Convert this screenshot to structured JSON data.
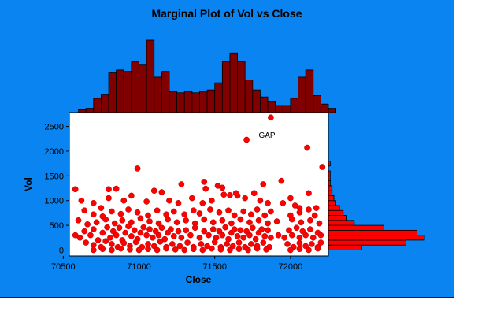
{
  "colors": {
    "background": "#0a84f0",
    "plot_area": "#ffffff",
    "histogram_top_fill": "#800000",
    "histogram_right_fill": "#ff0000",
    "points": "#ff0000",
    "text": "#000000"
  },
  "chart_data": {
    "type": "scatter",
    "title": "Marginal Plot of Vol vs Close",
    "xlabel": "Close",
    "ylabel": "Vol",
    "xlim": [
      70540,
      72250
    ],
    "ylim": [
      -120,
      2780
    ],
    "x_ticks": [
      70500,
      71000,
      71500,
      72000
    ],
    "y_ticks": [
      0,
      500,
      1000,
      1500,
      2000,
      2500
    ],
    "annotations": [
      {
        "text": "GAP",
        "x": 71855,
        "y": 2380
      }
    ],
    "series": [
      {
        "points": [
          [
            71870,
            2680
          ],
          [
            71710,
            2230
          ],
          [
            72110,
            2070
          ],
          [
            72210,
            1680
          ],
          [
            70990,
            1650
          ],
          [
            70580,
            1230
          ],
          [
            70800,
            1230
          ],
          [
            70850,
            1240
          ],
          [
            71100,
            1200
          ],
          [
            71150,
            1170
          ],
          [
            71280,
            1330
          ],
          [
            71430,
            1380
          ],
          [
            71440,
            1240
          ],
          [
            71520,
            1300
          ],
          [
            71550,
            1260
          ],
          [
            71600,
            1110
          ],
          [
            71650,
            1100
          ],
          [
            71700,
            1050
          ],
          [
            71760,
            1150
          ],
          [
            71820,
            1330
          ],
          [
            71940,
            1400
          ],
          [
            72000,
            1050
          ],
          [
            72030,
            900
          ],
          [
            72060,
            850
          ],
          [
            72120,
            1150
          ],
          [
            70620,
            1000
          ],
          [
            70700,
            950
          ],
          [
            70750,
            850
          ],
          [
            70800,
            1050
          ],
          [
            70900,
            1000
          ],
          [
            70950,
            1100
          ],
          [
            71050,
            980
          ],
          [
            71200,
            1000
          ],
          [
            71260,
            950
          ],
          [
            71350,
            1050
          ],
          [
            71420,
            950
          ],
          [
            71480,
            1000
          ],
          [
            71560,
            1120
          ],
          [
            71640,
            1150
          ],
          [
            71800,
            1000
          ],
          [
            71850,
            950
          ],
          [
            71950,
            950
          ],
          [
            72170,
            850
          ],
          [
            70640,
            800
          ],
          [
            70700,
            720
          ],
          [
            70760,
            680
          ],
          [
            70820,
            780
          ],
          [
            70880,
            730
          ],
          [
            70930,
            820
          ],
          [
            70990,
            760
          ],
          [
            71060,
            700
          ],
          [
            71120,
            800
          ],
          [
            71180,
            720
          ],
          [
            71230,
            780
          ],
          [
            71300,
            720
          ],
          [
            71360,
            800
          ],
          [
            71400,
            740
          ],
          [
            71470,
            820
          ],
          [
            71530,
            760
          ],
          [
            71590,
            800
          ],
          [
            71630,
            700
          ],
          [
            71690,
            780
          ],
          [
            71740,
            720
          ],
          [
            71780,
            820
          ],
          [
            71830,
            700
          ],
          [
            71870,
            780
          ],
          [
            72000,
            700
          ],
          [
            72060,
            760
          ],
          [
            72120,
            820
          ],
          [
            72160,
            700
          ],
          [
            70600,
            600
          ],
          [
            70660,
            520
          ],
          [
            70720,
            560
          ],
          [
            70780,
            620
          ],
          [
            70840,
            540
          ],
          [
            70890,
            600
          ],
          [
            70950,
            560
          ],
          [
            71010,
            640
          ],
          [
            71070,
            580
          ],
          [
            71130,
            540
          ],
          [
            71190,
            620
          ],
          [
            71250,
            560
          ],
          [
            71310,
            600
          ],
          [
            71370,
            540
          ],
          [
            71430,
            620
          ],
          [
            71490,
            560
          ],
          [
            71550,
            600
          ],
          [
            71610,
            540
          ],
          [
            71670,
            620
          ],
          [
            71730,
            560
          ],
          [
            71790,
            600
          ],
          [
            71850,
            540
          ],
          [
            71910,
            580
          ],
          [
            72010,
            620
          ],
          [
            72070,
            560
          ],
          [
            72130,
            600
          ],
          [
            72190,
            540
          ],
          [
            70580,
            300
          ],
          [
            70610,
            250
          ],
          [
            70640,
            380
          ],
          [
            70680,
            300
          ],
          [
            70700,
            420
          ],
          [
            70730,
            200
          ],
          [
            70760,
            350
          ],
          [
            70790,
            460
          ],
          [
            70810,
            250
          ],
          [
            70830,
            380
          ],
          [
            70850,
            300
          ],
          [
            70870,
            450
          ],
          [
            70890,
            200
          ],
          [
            70910,
            350
          ],
          [
            70930,
            480
          ],
          [
            70950,
            280
          ],
          [
            70970,
            400
          ],
          [
            70990,
            220
          ],
          [
            71010,
            350
          ],
          [
            71030,
            460
          ],
          [
            71050,
            300
          ],
          [
            71070,
            420
          ],
          [
            71090,
            250
          ],
          [
            71110,
            380
          ],
          [
            71130,
            300
          ],
          [
            71150,
            450
          ],
          [
            71170,
            220
          ],
          [
            71190,
            350
          ],
          [
            71210,
            420
          ],
          [
            71230,
            280
          ],
          [
            71260,
            380
          ],
          [
            71280,
            250
          ],
          [
            71310,
            400
          ],
          [
            71340,
            300
          ],
          [
            71370,
            450
          ],
          [
            71400,
            250
          ],
          [
            71430,
            380
          ],
          [
            71460,
            300
          ],
          [
            71490,
            420
          ],
          [
            71510,
            250
          ],
          [
            71530,
            380
          ],
          [
            71550,
            300
          ],
          [
            71570,
            460
          ],
          [
            71590,
            220
          ],
          [
            71610,
            350
          ],
          [
            71630,
            420
          ],
          [
            71650,
            280
          ],
          [
            71670,
            400
          ],
          [
            71690,
            250
          ],
          [
            71710,
            380
          ],
          [
            71730,
            300
          ],
          [
            71750,
            450
          ],
          [
            71770,
            220
          ],
          [
            71790,
            350
          ],
          [
            71810,
            420
          ],
          [
            71830,
            280
          ],
          [
            71850,
            400
          ],
          [
            71870,
            250
          ],
          [
            71920,
            300
          ],
          [
            71960,
            250
          ],
          [
            71990,
            400
          ],
          [
            72010,
            300
          ],
          [
            72040,
            450
          ],
          [
            72060,
            250
          ],
          [
            72080,
            380
          ],
          [
            72100,
            300
          ],
          [
            72130,
            420
          ],
          [
            72150,
            250
          ],
          [
            72180,
            350
          ],
          [
            72200,
            300
          ],
          [
            70650,
            150
          ],
          [
            70700,
            100
          ],
          [
            70750,
            60
          ],
          [
            70780,
            180
          ],
          [
            70820,
            120
          ],
          [
            70860,
            60
          ],
          [
            70900,
            140
          ],
          [
            70940,
            80
          ],
          [
            70980,
            160
          ],
          [
            71020,
            60
          ],
          [
            71060,
            120
          ],
          [
            71100,
            80
          ],
          [
            71140,
            170
          ],
          [
            71180,
            60
          ],
          [
            71220,
            120
          ],
          [
            71270,
            80
          ],
          [
            71320,
            150
          ],
          [
            71360,
            60
          ],
          [
            71410,
            120
          ],
          [
            71450,
            80
          ],
          [
            71500,
            160
          ],
          [
            71540,
            60
          ],
          [
            71580,
            120
          ],
          [
            71620,
            80
          ],
          [
            71660,
            150
          ],
          [
            71700,
            60
          ],
          [
            71740,
            120
          ],
          [
            71780,
            80
          ],
          [
            71820,
            150
          ],
          [
            71860,
            60
          ],
          [
            71980,
            120
          ],
          [
            72020,
            60
          ],
          [
            72060,
            140
          ],
          [
            72100,
            80
          ],
          [
            72140,
            120
          ],
          [
            72180,
            60
          ],
          [
            72200,
            150
          ],
          [
            70700,
            0
          ],
          [
            70760,
            20
          ],
          [
            70820,
            0
          ],
          [
            70880,
            30
          ],
          [
            70940,
            10
          ],
          [
            71000,
            0
          ],
          [
            71060,
            20
          ],
          [
            71120,
            0
          ],
          [
            71180,
            30
          ],
          [
            71240,
            10
          ],
          [
            71300,
            0
          ],
          [
            71360,
            20
          ],
          [
            71420,
            0
          ],
          [
            71480,
            30
          ],
          [
            71540,
            10
          ],
          [
            71600,
            0
          ],
          [
            71660,
            20
          ],
          [
            71720,
            0
          ],
          [
            71780,
            30
          ],
          [
            71840,
            10
          ],
          [
            72000,
            0
          ],
          [
            72060,
            20
          ],
          [
            72120,
            0
          ],
          [
            72180,
            30
          ]
        ]
      }
    ],
    "x_histogram": {
      "bin_start": 70600,
      "bin_width": 50,
      "counts": [
        2,
        3,
        10,
        13,
        28,
        30,
        29,
        36,
        34,
        51,
        25,
        29,
        15,
        14,
        15,
        14,
        15,
        16,
        21,
        36,
        42,
        36,
        23,
        16,
        11,
        8,
        5,
        5,
        10,
        25,
        30,
        12,
        6,
        3
      ]
    },
    "y_histogram": {
      "bin_start": 0,
      "bin_width": 100,
      "counts": [
        18,
        42,
        52,
        48,
        30,
        14,
        10,
        8,
        6,
        4,
        3,
        2,
        2,
        1,
        1,
        1,
        0,
        1
      ]
    }
  }
}
